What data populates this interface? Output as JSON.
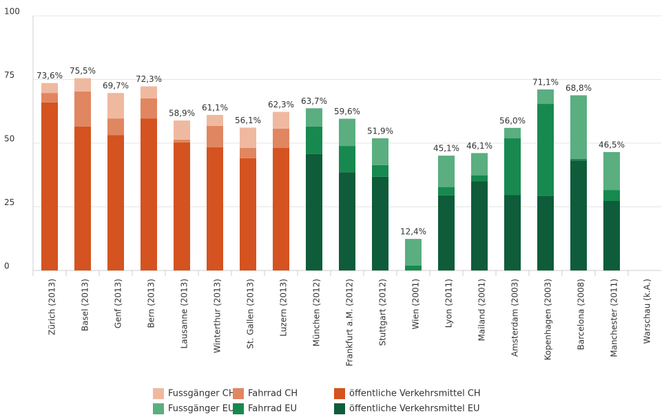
{
  "chart_data": {
    "type": "stacked_bar",
    "categories": [
      "Zürich (2013)",
      "Basel (2013)",
      "Genf (2013)",
      "Bern (2013)",
      "Lausanne (2013)",
      "Winterthur (2013)",
      "St. Gallen (2013)",
      "Luzern (2013)",
      "München (2012)",
      "Frankfurt a.M. (2012)",
      "Stuttgart (2012)",
      "Wien (2001)",
      "Lyon (2011)",
      "Mailand (2001)",
      "Amsterdam (2003)",
      "Kopenhagen (2003)",
      "Barcelona (2008)",
      "Manchester (2011)",
      "Warschau (k.A.)"
    ],
    "series": [
      {
        "name": "Fussgänger CH",
        "color": "#efb9a0",
        "values": [
          3.9,
          5.2,
          10.0,
          4.7,
          7.5,
          4.3,
          8.0,
          6.6,
          null,
          null,
          null,
          null,
          null,
          null,
          null,
          null,
          null,
          null,
          null
        ]
      },
      {
        "name": "Fahrrad CH",
        "color": "#e08660",
        "values": [
          3.7,
          13.8,
          6.5,
          7.9,
          1.1,
          8.4,
          4.0,
          7.6,
          null,
          null,
          null,
          null,
          null,
          null,
          null,
          null,
          null,
          null,
          null
        ]
      },
      {
        "name": "öffentliche Verkehrsmittel CH",
        "color": "#d45320",
        "values": [
          66.0,
          56.5,
          53.2,
          59.7,
          50.3,
          48.4,
          44.1,
          48.1,
          null,
          null,
          null,
          null,
          null,
          null,
          null,
          null,
          null,
          null,
          null
        ]
      },
      {
        "name": "Fussgänger EU",
        "color": "#5aae80",
        "values": [
          null,
          null,
          null,
          null,
          null,
          null,
          null,
          null,
          7.2,
          10.7,
          10.5,
          10.5,
          12.4,
          8.8,
          4.1,
          5.7,
          25.0,
          14.9,
          null
        ]
      },
      {
        "name": "Fahrrad EU",
        "color": "#17894f",
        "values": [
          null,
          null,
          null,
          null,
          null,
          null,
          null,
          null,
          10.8,
          10.3,
          4.6,
          1.9,
          3.2,
          2.2,
          22.2,
          36.2,
          0.6,
          4.3,
          null
        ]
      },
      {
        "name": "öffentliche Verkehrsmittel EU",
        "color": "#0e5c3a",
        "values": [
          null,
          null,
          null,
          null,
          null,
          null,
          null,
          null,
          45.7,
          38.6,
          36.8,
          0,
          29.5,
          35.1,
          29.7,
          29.2,
          43.2,
          27.3,
          null
        ]
      }
    ],
    "totals": [
      73.6,
      75.5,
      69.7,
      72.3,
      58.9,
      61.1,
      56.1,
      62.3,
      63.7,
      59.6,
      51.9,
      12.4,
      45.1,
      46.1,
      56.0,
      71.1,
      68.8,
      46.5,
      null
    ],
    "total_labels": [
      "73,6%",
      "75,5%",
      "69,7%",
      "72,3%",
      "58,9%",
      "61,1%",
      "56,1%",
      "62,3%",
      "63,7%",
      "59,6%",
      "51,9%",
      "12,4%",
      "45,1%",
      "46,1%",
      "56,0%",
      "71,1%",
      "68,8%",
      "46,5%",
      null
    ],
    "ylim": [
      0,
      100
    ],
    "yticks": [
      0,
      25,
      50,
      75,
      100
    ],
    "grid": true,
    "legend": "bottom"
  }
}
